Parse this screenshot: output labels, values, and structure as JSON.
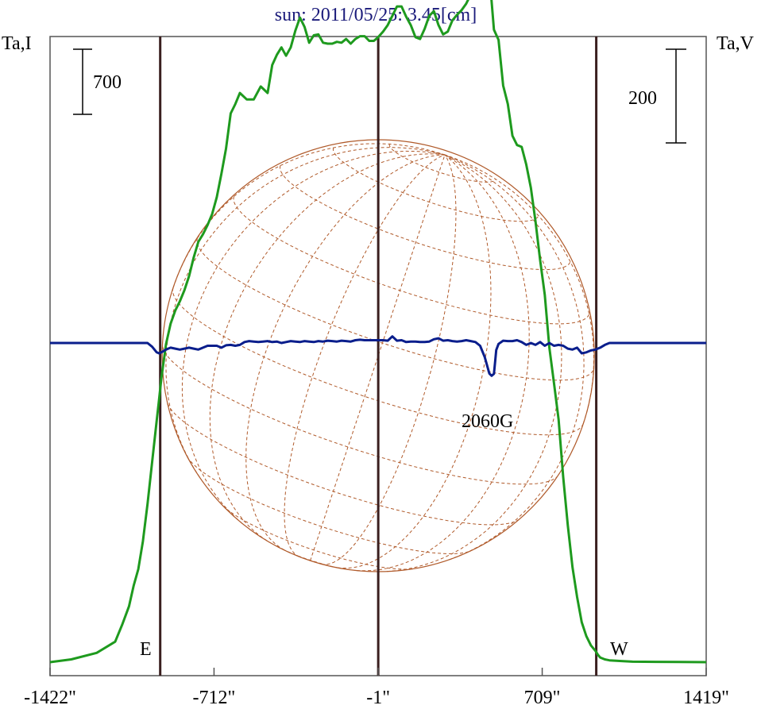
{
  "chart_data": {
    "type": "line",
    "title": "sun: 2011/05/25: 3.45[cm]",
    "left_axis_label": "Ta,I",
    "right_axis_label": "Ta,V",
    "left_scale_bar_label": "700",
    "right_scale_bar_label": "200",
    "x_tick_labels": [
      "-1422\"",
      "-712\"",
      "-1\"",
      "709\"",
      "1419\""
    ],
    "x_tick_values": [
      -1422,
      -712,
      -1,
      709,
      1419
    ],
    "xlim": [
      -1422,
      1419
    ],
    "limb_markers": [
      {
        "label": "E",
        "x": -945
      },
      {
        "label": "W",
        "x": 943
      }
    ],
    "center_marker_x": -1,
    "annotation": {
      "text": "2060G",
      "x": 505
    },
    "intensity_scale_bar": 700,
    "polarization_scale_bar": 200,
    "series": [
      {
        "key": "I",
        "color": "#1e9a1e",
        "axis": "left",
        "x": [
          -1422,
          -1330,
          -1220,
          -1140,
          -1110,
          -1080,
          -1060,
          -1040,
          -1020,
          -1000,
          -980,
          -960,
          -950,
          -940,
          -920,
          -900,
          -880,
          -860,
          -840,
          -820,
          -800,
          -780,
          -760,
          -740,
          -720,
          -700,
          -680,
          -660,
          -640,
          -620,
          -600,
          -570,
          -540,
          -510,
          -480,
          -460,
          -440,
          -420,
          -400,
          -380,
          -360,
          -340,
          -320,
          -300,
          -280,
          -260,
          -240,
          -220,
          -200,
          -180,
          -160,
          -140,
          -120,
          -100,
          -80,
          -60,
          -40,
          -20,
          -1,
          20,
          40,
          60,
          80,
          100,
          120,
          140,
          160,
          180,
          200,
          220,
          240,
          260,
          280,
          300,
          320,
          340,
          360,
          380,
          400,
          420,
          440,
          460,
          480,
          500,
          520,
          540,
          560,
          580,
          600,
          620,
          640,
          660,
          680,
          700,
          720,
          740,
          760,
          780,
          800,
          820,
          840,
          860,
          880,
          900,
          920,
          940,
          950,
          960,
          980,
          1000,
          1030,
          1060,
          1100,
          1200,
          1300,
          1419
        ],
        "y": [
          0,
          30,
          100,
          220,
          400,
          600,
          820,
          1000,
          1300,
          1700,
          2150,
          2600,
          2820,
          3050,
          3420,
          3640,
          3780,
          3880,
          4000,
          4150,
          4350,
          4520,
          4600,
          4700,
          4820,
          5000,
          5250,
          5520,
          5900,
          6000,
          6120,
          6050,
          6050,
          6190,
          6120,
          6420,
          6530,
          6610,
          6520,
          6610,
          6790,
          6930,
          6830,
          6660,
          6740,
          6750,
          6660,
          6650,
          6650,
          6670,
          6660,
          6700,
          6650,
          6700,
          6730,
          6730,
          6680,
          6680,
          6720,
          6780,
          6850,
          6950,
          7050,
          7050,
          6940,
          6850,
          6720,
          6700,
          6810,
          6950,
          7000,
          6850,
          6750,
          6780,
          6900,
          6960,
          7010,
          7080,
          7180,
          7300,
          7460,
          7900,
          7400,
          6800,
          6690,
          6200,
          6000,
          5660,
          5560,
          5540,
          5350,
          5100,
          4740,
          4320,
          3950,
          3380,
          3000,
          2610,
          1990,
          1470,
          1020,
          700,
          430,
          280,
          180,
          120,
          80,
          50,
          30,
          20,
          15,
          10,
          5,
          3,
          2,
          0
        ]
      },
      {
        "key": "V",
        "color": "#0a1e8c",
        "axis": "right",
        "x": [
          -1422,
          -1000,
          -980,
          -960,
          -950,
          -940,
          -920,
          -900,
          -880,
          -860,
          -840,
          -820,
          -800,
          -780,
          -760,
          -740,
          -720,
          -700,
          -680,
          -660,
          -640,
          -620,
          -600,
          -580,
          -560,
          -540,
          -520,
          -500,
          -480,
          -460,
          -440,
          -420,
          -400,
          -380,
          -360,
          -340,
          -320,
          -300,
          -280,
          -260,
          -240,
          -220,
          -200,
          -180,
          -160,
          -140,
          -120,
          -100,
          -80,
          -60,
          -40,
          -20,
          -1,
          20,
          40,
          60,
          80,
          100,
          120,
          140,
          160,
          180,
          200,
          220,
          240,
          260,
          280,
          300,
          320,
          340,
          360,
          380,
          400,
          420,
          440,
          460,
          480,
          490,
          500,
          505,
          510,
          520,
          540,
          560,
          580,
          600,
          620,
          640,
          660,
          680,
          700,
          720,
          740,
          760,
          780,
          800,
          820,
          840,
          860,
          880,
          900,
          920,
          940,
          960,
          980,
          1000,
          1419
        ],
        "y": [
          0,
          0,
          -8,
          -20,
          -22,
          -20,
          -14,
          -10,
          -12,
          -14,
          -12,
          -10,
          -12,
          -14,
          -10,
          -6,
          -6,
          -6,
          -10,
          -5,
          -4,
          -6,
          -4,
          2,
          4,
          3,
          2,
          3,
          4,
          2,
          3,
          0,
          2,
          4,
          3,
          2,
          4,
          3,
          2,
          4,
          3,
          5,
          4,
          3,
          5,
          4,
          3,
          6,
          7,
          6,
          6,
          6,
          6,
          6,
          5,
          14,
          5,
          6,
          2,
          3,
          3,
          2,
          2,
          3,
          8,
          10,
          5,
          6,
          4,
          3,
          4,
          6,
          4,
          2,
          -6,
          -30,
          -65,
          -70,
          -66,
          -40,
          -15,
          -2,
          5,
          4,
          4,
          6,
          2,
          -4,
          0,
          -4,
          2,
          -6,
          0,
          -6,
          -4,
          -6,
          -12,
          -14,
          -10,
          -22,
          -20,
          -16,
          -14,
          -10,
          -4,
          0,
          0
        ]
      }
    ]
  }
}
